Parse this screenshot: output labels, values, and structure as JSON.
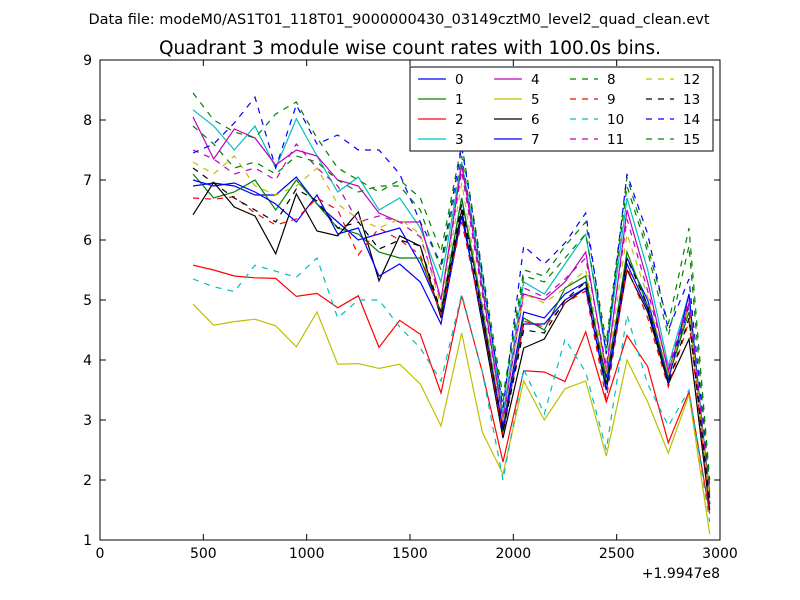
{
  "header": {
    "data_file_label": "Data file: modeM0/AS1T01_118T01_9000000430_03149cztM0_level2_quad_clean.evt"
  },
  "chart_data": {
    "type": "line",
    "title": "Quadrant 3 module wise count rates with 100.0s bins.",
    "xlabel": "",
    "ylabel": "",
    "x_offset_label": "+1.9947e8",
    "xlim": [
      0,
      3000
    ],
    "ylim": [
      1,
      9
    ],
    "xticks": [
      0,
      500,
      1000,
      1500,
      2000,
      2500,
      3000
    ],
    "yticks": [
      1,
      2,
      3,
      4,
      5,
      6,
      7,
      8,
      9
    ],
    "grid": false,
    "legend_position": "top-right",
    "legend_columns": 4,
    "x": [
      450,
      550,
      650,
      750,
      850,
      950,
      1050,
      1150,
      1250,
      1350,
      1450,
      1550,
      1650,
      1750,
      1850,
      1950,
      2050,
      2150,
      2250,
      2350,
      2450,
      2550,
      2650,
      2750,
      2850,
      2950
    ],
    "series": [
      {
        "name": "0",
        "color": "#0000ff",
        "dash": "solid",
        "values": [
          6.9,
          6.95,
          6.9,
          6.75,
          6.75,
          7.05,
          6.6,
          6.3,
          6.0,
          6.1,
          6.2,
          5.6,
          4.8,
          6.7,
          4.8,
          2.9,
          4.8,
          4.7,
          5.1,
          5.3,
          3.7,
          5.7,
          5.0,
          3.7,
          4.9,
          1.6
        ]
      },
      {
        "name": "1",
        "color": "#008000",
        "dash": "solid",
        "values": [
          7.1,
          6.7,
          6.8,
          7.0,
          6.5,
          7.0,
          6.6,
          6.2,
          6.1,
          5.8,
          5.7,
          5.7,
          4.8,
          6.7,
          4.9,
          2.8,
          4.7,
          4.5,
          5.2,
          5.4,
          3.6,
          5.8,
          4.9,
          3.7,
          4.8,
          1.8
        ]
      },
      {
        "name": "2",
        "color": "#ff0000",
        "dash": "solid",
        "values": [
          5.58,
          5.5,
          5.4,
          5.37,
          5.36,
          5.06,
          5.11,
          4.87,
          5.07,
          4.21,
          4.66,
          4.43,
          3.45,
          5.07,
          3.8,
          2.3,
          3.82,
          3.8,
          3.64,
          4.47,
          3.3,
          4.41,
          3.89,
          2.62,
          3.47,
          1.44
        ]
      },
      {
        "name": "3",
        "color": "#00bfbf",
        "dash": "solid",
        "values": [
          8.17,
          7.9,
          7.5,
          7.9,
          7.2,
          8.02,
          7.4,
          6.8,
          7.05,
          6.5,
          6.7,
          6.2,
          5.3,
          7.3,
          5.4,
          3.1,
          5.3,
          5.1,
          5.6,
          6.1,
          4.1,
          6.7,
          5.5,
          3.9,
          5.1,
          1.7
        ]
      },
      {
        "name": "4",
        "color": "#bf00bf",
        "dash": "solid",
        "values": [
          8.05,
          7.35,
          7.85,
          7.7,
          7.25,
          7.5,
          7.4,
          7.0,
          6.9,
          6.45,
          6.3,
          6.3,
          5.0,
          7.25,
          5.2,
          3.0,
          5.1,
          5.0,
          5.3,
          5.8,
          3.8,
          6.5,
          5.3,
          3.8,
          4.95,
          1.7
        ]
      },
      {
        "name": "5",
        "color": "#bfbf00",
        "dash": "solid",
        "values": [
          4.93,
          4.58,
          4.64,
          4.68,
          4.57,
          4.22,
          4.8,
          3.93,
          3.94,
          3.86,
          3.93,
          3.6,
          2.9,
          4.45,
          2.8,
          2.1,
          3.65,
          3.0,
          3.52,
          3.65,
          2.4,
          4.0,
          3.3,
          2.45,
          3.42,
          1.1
        ]
      },
      {
        "name": "6",
        "color": "#000000",
        "dash": "solid",
        "values": [
          6.42,
          6.96,
          6.55,
          6.4,
          5.77,
          6.77,
          6.15,
          6.07,
          6.47,
          5.32,
          6.07,
          5.9,
          4.7,
          6.5,
          4.6,
          2.7,
          4.2,
          4.35,
          4.95,
          5.2,
          3.5,
          5.5,
          4.8,
          3.6,
          4.35,
          1.5
        ]
      },
      {
        "name": "7",
        "color": "#0000ff",
        "dash": "solid",
        "values": [
          7.0,
          6.9,
          6.95,
          6.8,
          6.6,
          6.3,
          6.75,
          6.1,
          6.2,
          5.4,
          5.6,
          5.3,
          4.6,
          6.4,
          4.7,
          2.85,
          4.6,
          4.6,
          5.0,
          5.2,
          3.5,
          5.6,
          4.85,
          3.65,
          5.1,
          1.6
        ]
      },
      {
        "name": "8",
        "color": "#008000",
        "dash": "dashed",
        "values": [
          8.45,
          8.0,
          7.8,
          7.7,
          8.1,
          8.3,
          7.7,
          7.2,
          7.0,
          6.8,
          7.0,
          6.7,
          5.8,
          7.6,
          5.5,
          3.4,
          5.5,
          5.4,
          5.9,
          6.3,
          4.3,
          7.05,
          5.9,
          4.6,
          6.2,
          2.0
        ]
      },
      {
        "name": "9",
        "color": "#ff0000",
        "dash": "dashed",
        "values": [
          6.7,
          6.68,
          6.72,
          6.45,
          6.25,
          6.35,
          6.7,
          6.5,
          5.75,
          6.2,
          6.0,
          5.75,
          4.75,
          6.3,
          4.7,
          2.75,
          4.65,
          4.55,
          4.95,
          5.15,
          3.35,
          5.55,
          4.7,
          3.55,
          4.65,
          1.55
        ]
      },
      {
        "name": "10",
        "color": "#00bfbf",
        "dash": "dashed",
        "values": [
          5.35,
          5.22,
          5.14,
          5.58,
          5.48,
          5.38,
          5.7,
          4.7,
          5.0,
          5.0,
          4.55,
          4.2,
          3.65,
          5.1,
          3.8,
          2.0,
          3.85,
          3.1,
          4.35,
          3.8,
          2.5,
          4.75,
          3.6,
          2.9,
          3.5,
          1.3
        ]
      },
      {
        "name": "11",
        "color": "#bf00bf",
        "dash": "dashed",
        "values": [
          7.5,
          7.35,
          7.1,
          7.2,
          7.0,
          7.6,
          7.2,
          6.9,
          6.3,
          6.4,
          6.3,
          6.05,
          5.0,
          7.15,
          5.1,
          3.0,
          5.2,
          5.05,
          5.35,
          5.7,
          3.9,
          6.35,
          5.15,
          3.85,
          5.0,
          1.75
        ]
      },
      {
        "name": "12",
        "color": "#bfbf00",
        "dash": "dashed",
        "values": [
          7.3,
          7.1,
          7.4,
          6.9,
          6.75,
          6.9,
          7.2,
          6.6,
          6.35,
          6.2,
          6.35,
          6.1,
          4.9,
          6.95,
          4.9,
          2.95,
          5.1,
          4.95,
          5.2,
          5.5,
          3.75,
          6.1,
          5.05,
          3.75,
          4.9,
          1.65
        ]
      },
      {
        "name": "13",
        "color": "#000000",
        "dash": "dashed",
        "values": [
          7.2,
          6.95,
          6.7,
          6.5,
          6.3,
          6.85,
          6.65,
          6.2,
          6.3,
          5.85,
          6.0,
          5.9,
          4.8,
          6.6,
          4.75,
          2.8,
          4.5,
          4.45,
          5.0,
          5.3,
          3.55,
          5.7,
          4.9,
          3.6,
          4.7,
          1.6
        ]
      },
      {
        "name": "14",
        "color": "#0000ff",
        "dash": "dashed",
        "values": [
          7.45,
          7.6,
          7.95,
          8.38,
          7.2,
          8.25,
          7.6,
          7.75,
          7.5,
          7.5,
          7.1,
          6.3,
          5.6,
          7.55,
          5.45,
          3.2,
          5.9,
          5.6,
          5.95,
          6.45,
          4.1,
          7.1,
          6.1,
          4.5,
          5.35,
          1.9
        ]
      },
      {
        "name": "15",
        "color": "#008000",
        "dash": "dashed",
        "values": [
          7.9,
          7.6,
          7.2,
          7.3,
          7.1,
          7.4,
          7.3,
          7.0,
          6.8,
          6.9,
          6.9,
          6.5,
          5.5,
          7.4,
          5.3,
          3.3,
          5.4,
          5.3,
          5.7,
          6.1,
          4.2,
          6.9,
          5.8,
          4.4,
          5.9,
          1.85
        ]
      }
    ]
  }
}
